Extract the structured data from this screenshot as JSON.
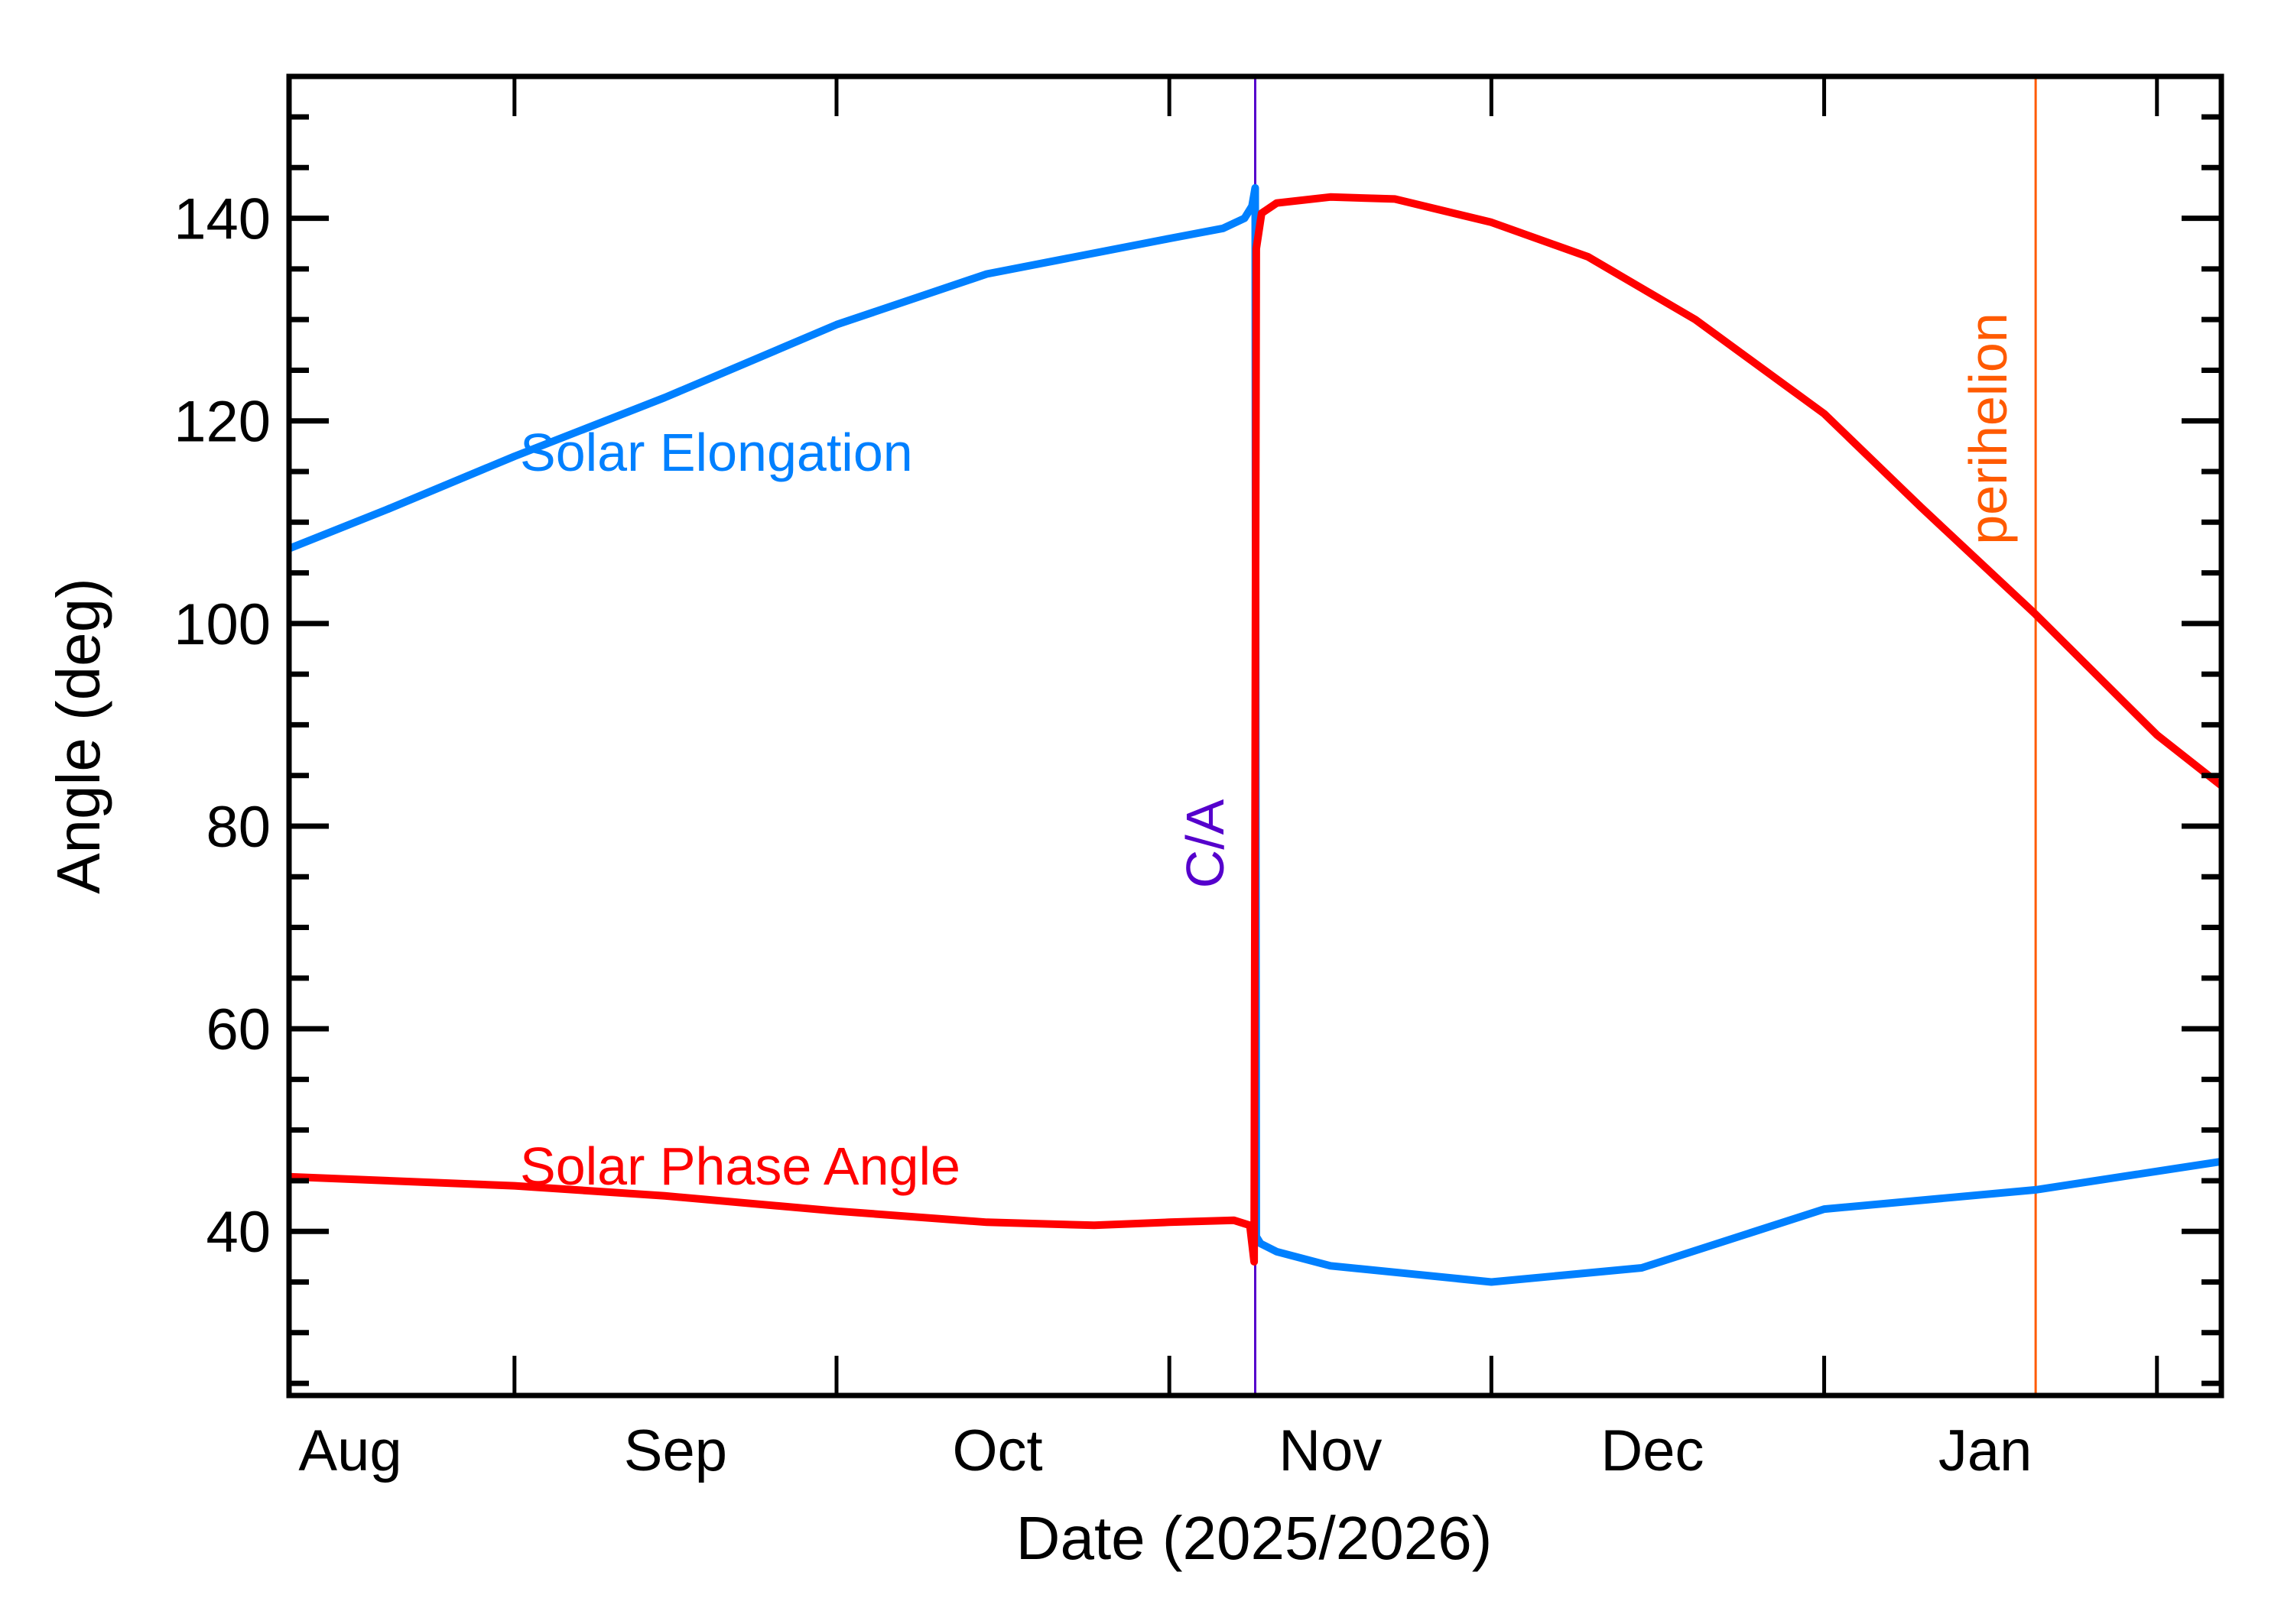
{
  "chart_data": {
    "type": "line",
    "xlabel": "Date (2025/2026)",
    "ylabel": "Angle (deg)",
    "xlim": [
      "2025-08-11",
      "2026-02-07"
    ],
    "ylim": [
      23.8,
      154
    ],
    "y_ticks": [
      40,
      60,
      80,
      100,
      120,
      140
    ],
    "y_minor_step": 5,
    "x_ticks": [
      {
        "label": "Aug",
        "start": "2025-08-01",
        "label_at": "2025-08-16"
      },
      {
        "label": "Sep",
        "start": "2025-09-01",
        "label_at": "2025-09-16"
      },
      {
        "label": "Oct",
        "start": "2025-10-01",
        "label_at": "2025-10-16"
      },
      {
        "label": "Nov",
        "start": "2025-11-01",
        "label_at": "2025-11-16"
      },
      {
        "label": "Dec",
        "start": "2025-12-01",
        "label_at": "2025-12-16"
      },
      {
        "label": "Jan",
        "start": "2026-01-01",
        "label_at": "2026-01-16"
      },
      {
        "label": "",
        "start": "2026-02-01",
        "label_at": null
      }
    ],
    "grid": false,
    "series": [
      {
        "name": "Solar Elongation",
        "color": "#0080ff",
        "points": [
          [
            "2025-08-11",
            107.4
          ],
          [
            "2025-08-20",
            111.2
          ],
          [
            "2025-09-01",
            116.5
          ],
          [
            "2025-09-15",
            122.3
          ],
          [
            "2025-10-01",
            129.5
          ],
          [
            "2025-10-15",
            134.5
          ],
          [
            "2025-11-01",
            138.0
          ],
          [
            "2025-11-06",
            139.0
          ],
          [
            "2025-11-08",
            140.0
          ],
          [
            "2025-11-08.7",
            141.2
          ],
          [
            "2025-11-09",
            143.0
          ],
          [
            "2025-11-09.1",
            39.5
          ],
          [
            "2025-11-09.5",
            38.8
          ],
          [
            "2025-11-11",
            38.0
          ],
          [
            "2025-11-16",
            36.6
          ],
          [
            "2025-12-01",
            35.0
          ],
          [
            "2025-12-15",
            36.4
          ],
          [
            "2026-01-01",
            42.2
          ],
          [
            "2026-01-20.7",
            44.1
          ],
          [
            "2026-02-07",
            46.9
          ]
        ]
      },
      {
        "name": "Solar Phase Angle",
        "color": "#ff0000",
        "points": [
          [
            "2025-08-11",
            45.4
          ],
          [
            "2025-09-01",
            44.5
          ],
          [
            "2025-09-15",
            43.5
          ],
          [
            "2025-10-01",
            42.0
          ],
          [
            "2025-10-15",
            40.9
          ],
          [
            "2025-10-25",
            40.6
          ],
          [
            "2025-11-01",
            40.9
          ],
          [
            "2025-11-07",
            41.1
          ],
          [
            "2025-11-08.5",
            40.6
          ],
          [
            "2025-11-08.9",
            37.0
          ],
          [
            "2025-11-09.1",
            137.0
          ],
          [
            "2025-11-09.6",
            140.5
          ],
          [
            "2025-11-11",
            141.5
          ],
          [
            "2025-11-16",
            142.1
          ],
          [
            "2025-11-22",
            141.9
          ],
          [
            "2025-12-01",
            139.6
          ],
          [
            "2025-12-10",
            136.2
          ],
          [
            "2025-12-20",
            130.0
          ],
          [
            "2026-01-01",
            120.7
          ],
          [
            "2026-01-10",
            111.5
          ],
          [
            "2026-01-20.7",
            100.9
          ],
          [
            "2026-02-01",
            89.0
          ],
          [
            "2026-02-07",
            84.0
          ]
        ]
      }
    ],
    "annotations": [
      {
        "text": "Solar Elongation",
        "color": "#0080ff"
      },
      {
        "text": "Solar Phase Angle",
        "color": "#ff0000"
      }
    ],
    "vlines": [
      {
        "label": "C/A",
        "date": "2025-11-09",
        "color": "#5500cc"
      },
      {
        "label": "perihelion",
        "date": "2026-01-20.7",
        "color": "#ff5a00"
      }
    ]
  }
}
